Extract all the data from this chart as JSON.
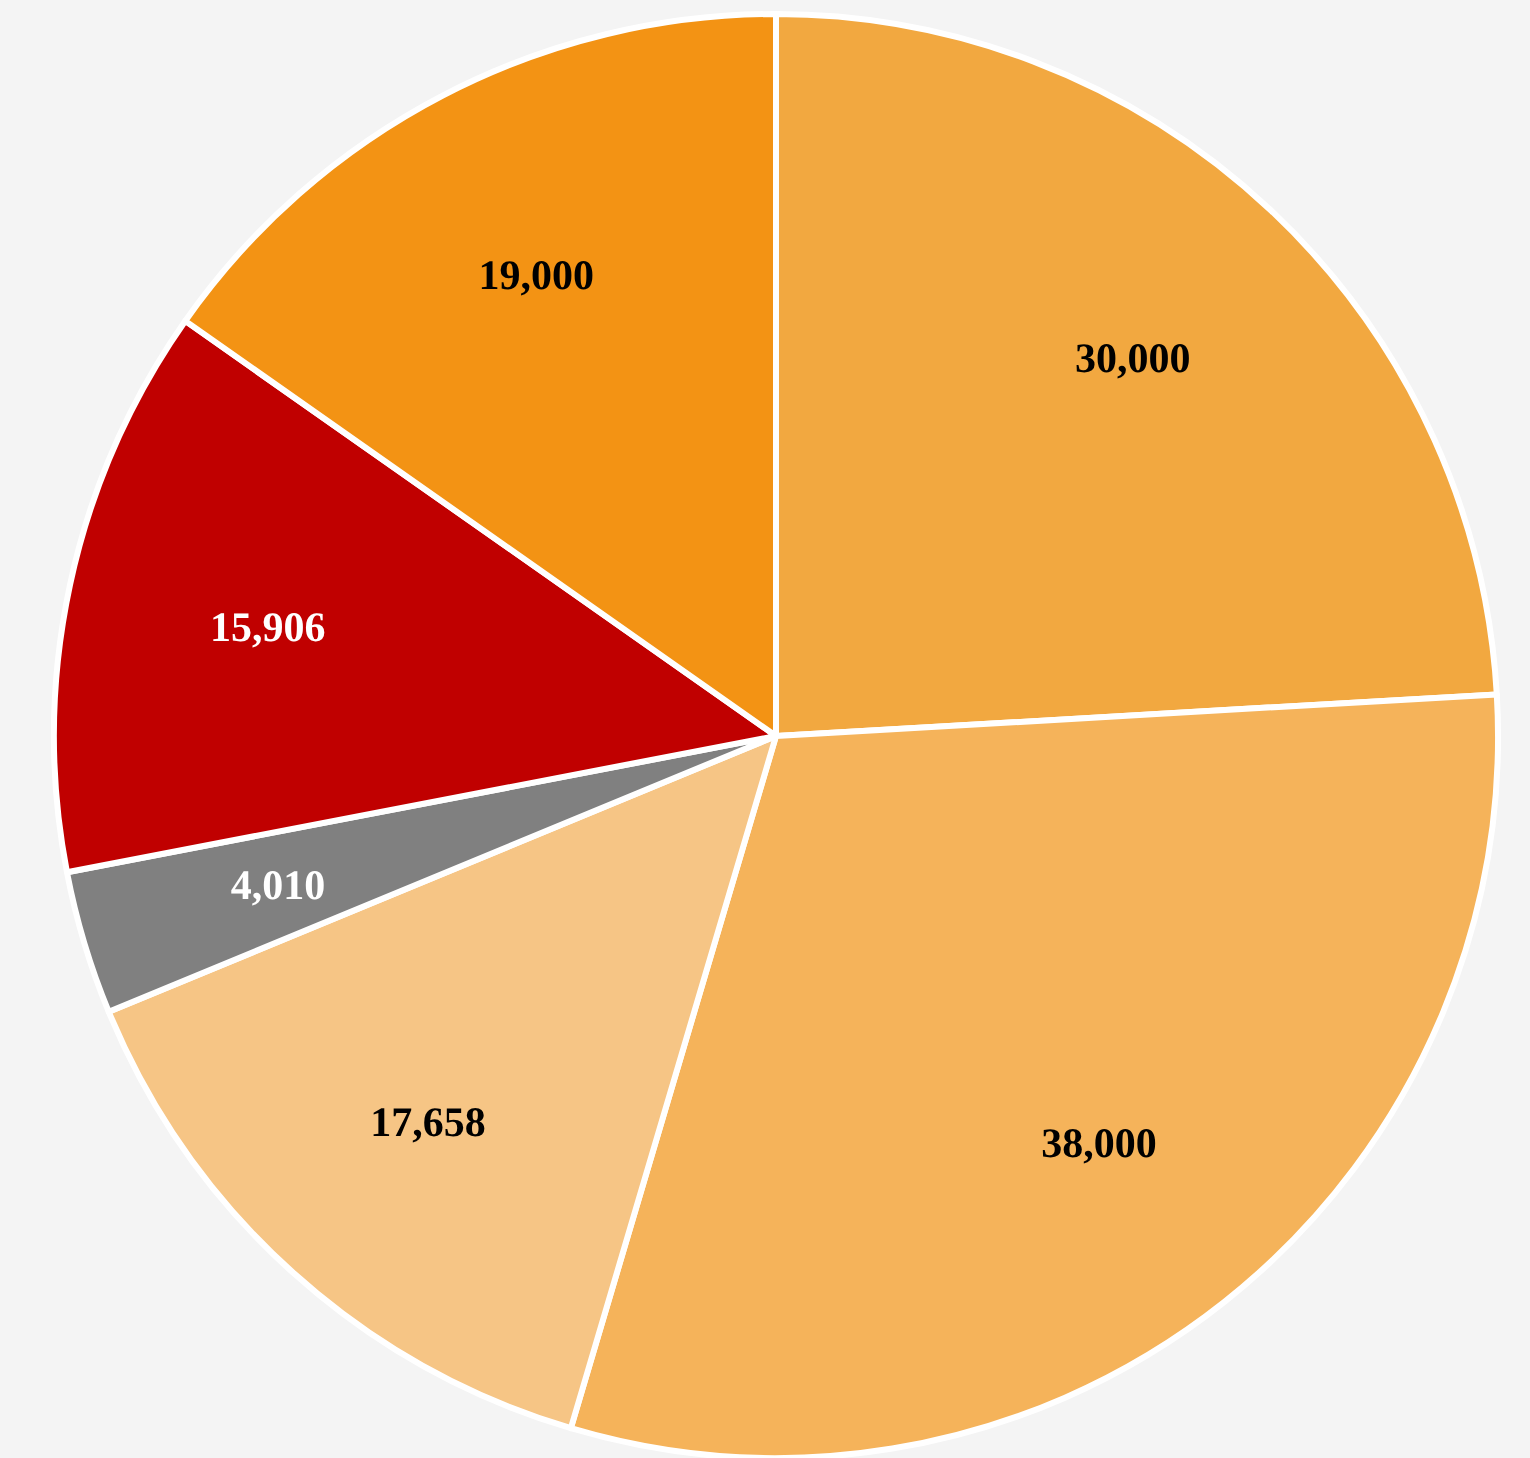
{
  "chart_data": {
    "type": "pie",
    "categories": [
      null,
      null,
      null,
      null,
      null,
      null
    ],
    "values": [
      30000,
      38000,
      17658,
      4010,
      15906,
      19000
    ],
    "colors": [
      "#f2a840",
      "#f5b35a",
      "#f6c585",
      "#808080",
      "#c00000",
      "#f39314"
    ],
    "value_labels": [
      "30,000",
      "38,000",
      "17,658",
      "4,010",
      "15,906",
      "19,000"
    ]
  }
}
